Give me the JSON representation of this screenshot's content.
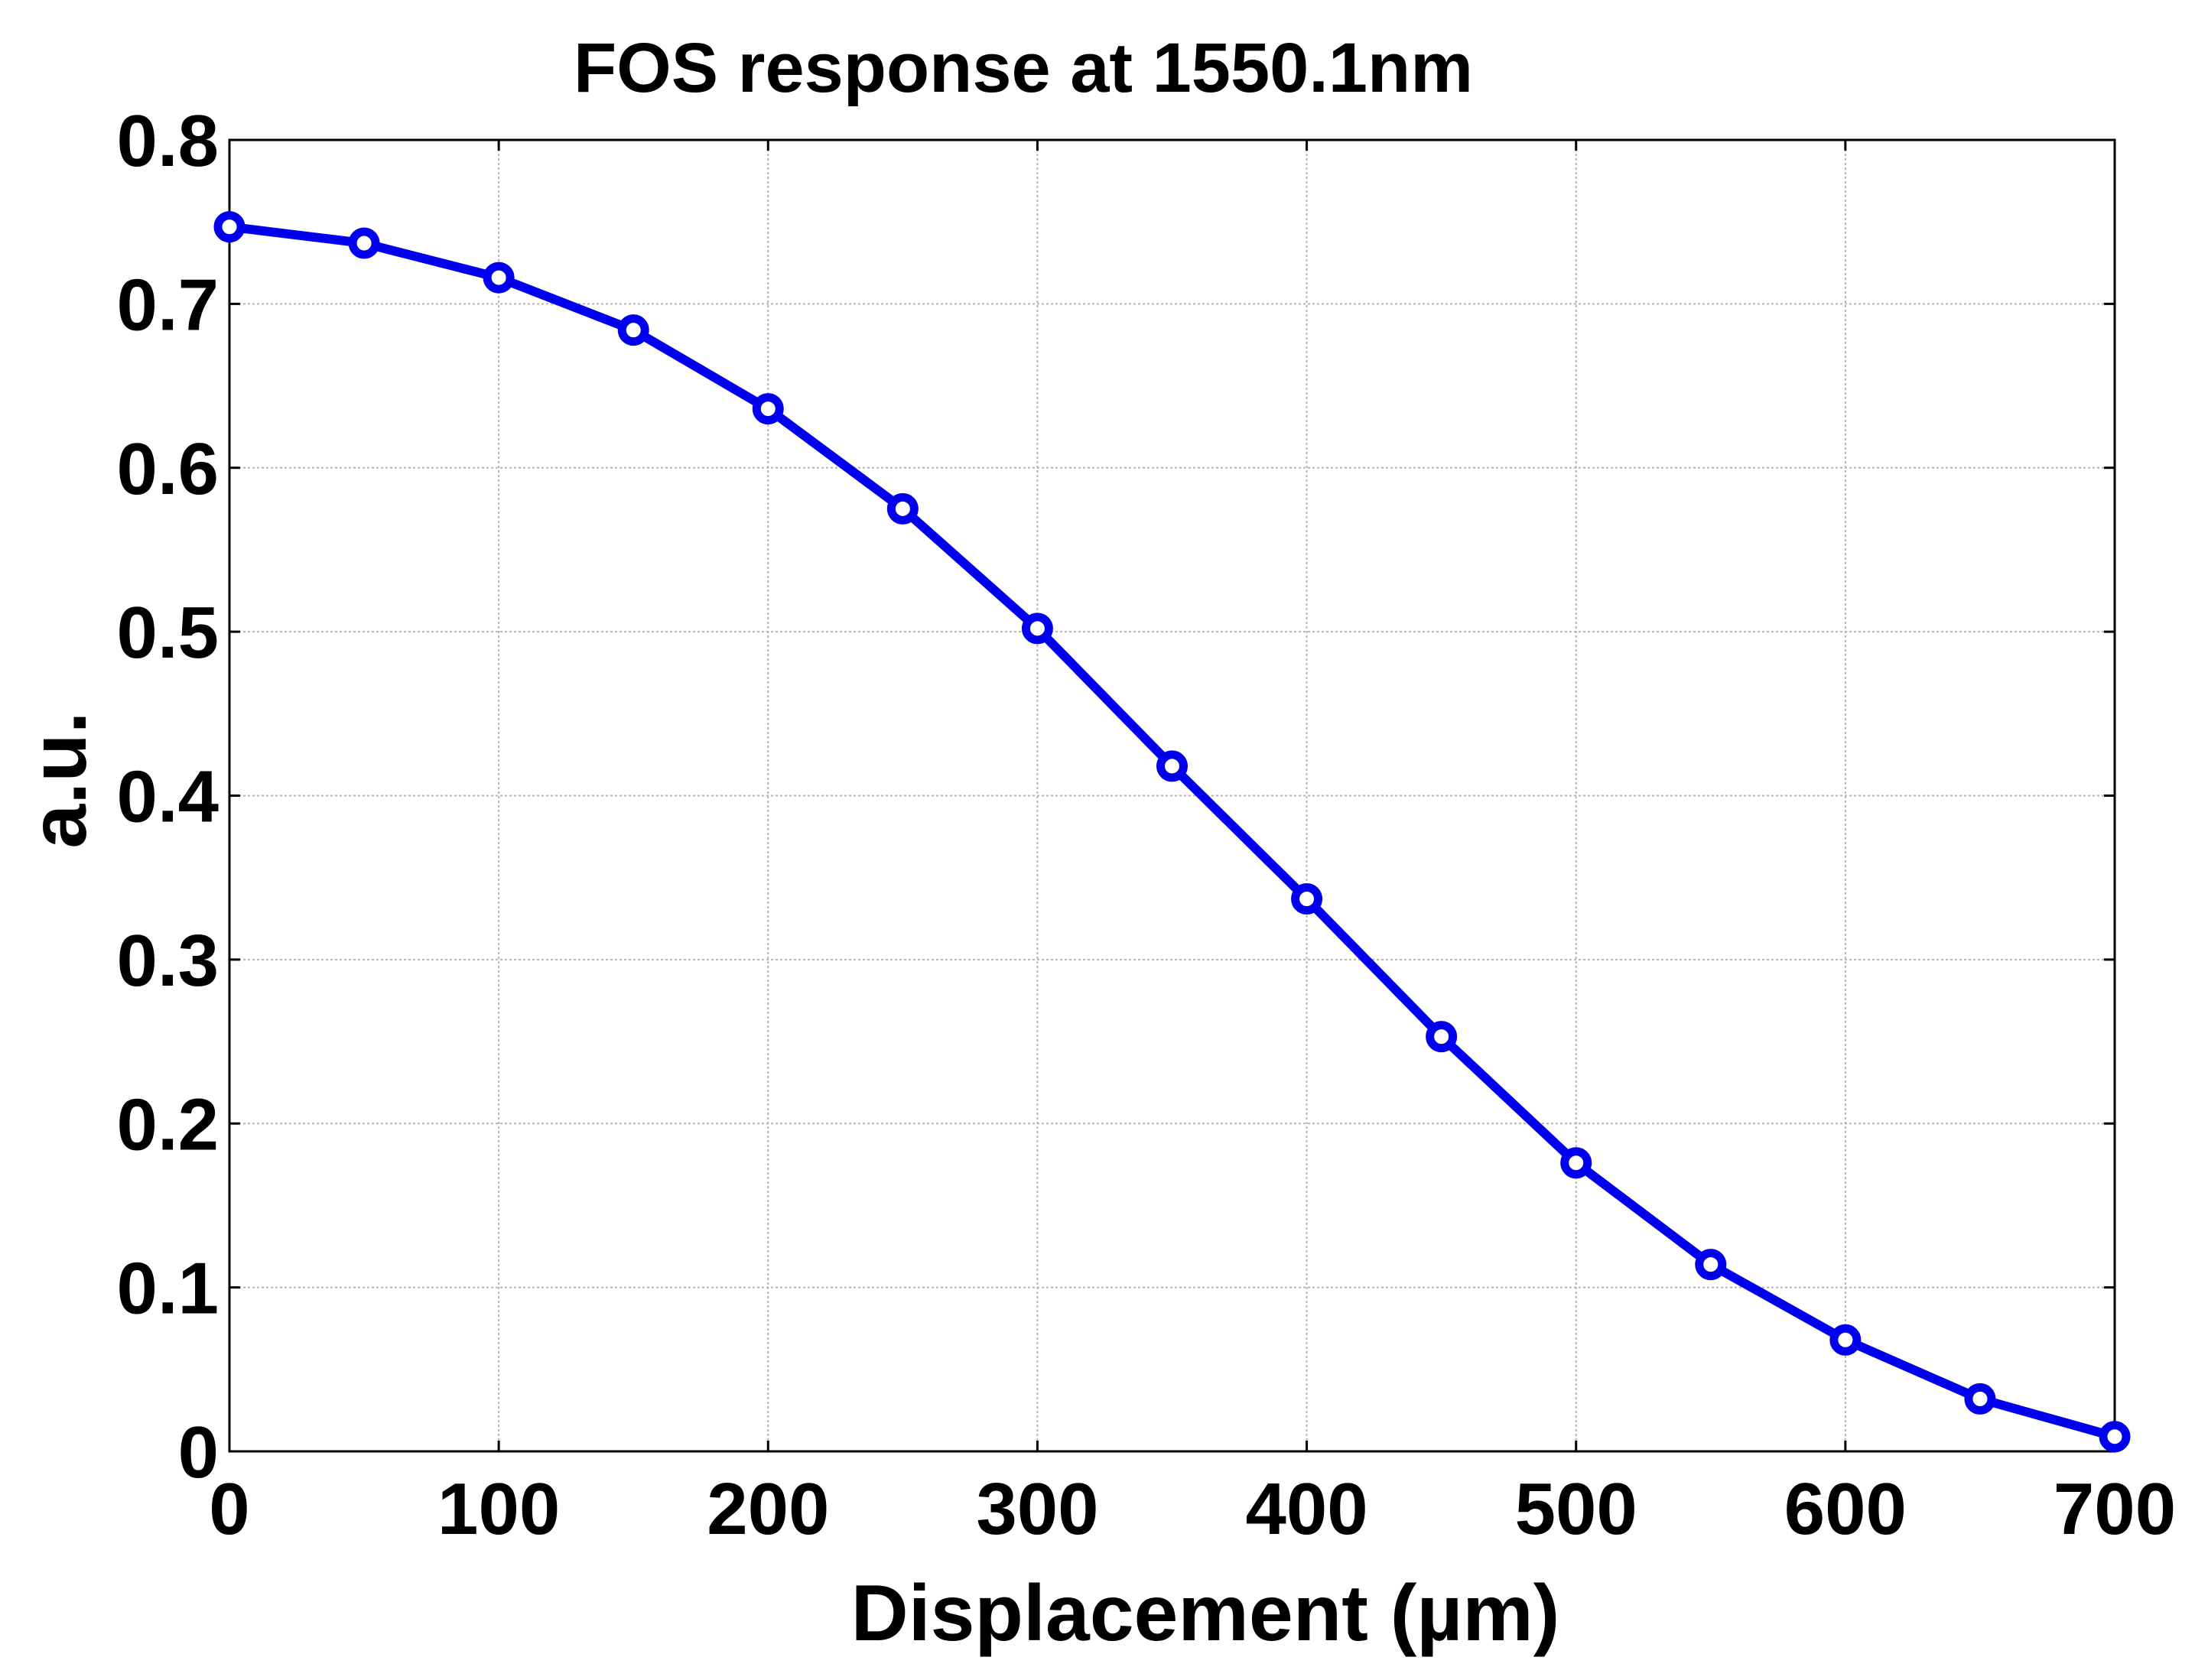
{
  "chart_data": {
    "type": "line",
    "title": "FOS response at 1550.1nm",
    "xlabel": "Displacement (µm)",
    "ylabel": "a.u.",
    "xlim": [
      0,
      700
    ],
    "ylim": [
      0,
      0.8
    ],
    "xticks": [
      0,
      100,
      200,
      300,
      400,
      500,
      600,
      700
    ],
    "yticks": [
      0,
      0.1,
      0.2,
      0.3,
      0.4,
      0.5,
      0.6,
      0.7,
      0.8
    ],
    "xtick_labels": [
      "0",
      "100",
      "200",
      "300",
      "400",
      "500",
      "600",
      "700"
    ],
    "ytick_labels": [
      "0",
      "0.1",
      "0.2",
      "0.3",
      "0.4",
      "0.5",
      "0.6",
      "0.7",
      "0.8"
    ],
    "grid": true,
    "legend": "none",
    "series": [
      {
        "color": "#0000ee",
        "marker": "circle-open",
        "x": [
          0,
          50,
          100,
          150,
          200,
          250,
          300,
          350,
          400,
          450,
          500,
          550,
          600,
          650,
          700
        ],
        "y": [
          0.747,
          0.737,
          0.716,
          0.684,
          0.636,
          0.575,
          0.502,
          0.418,
          0.337,
          0.253,
          0.176,
          0.114,
          0.068,
          0.032,
          0.009
        ]
      }
    ]
  }
}
